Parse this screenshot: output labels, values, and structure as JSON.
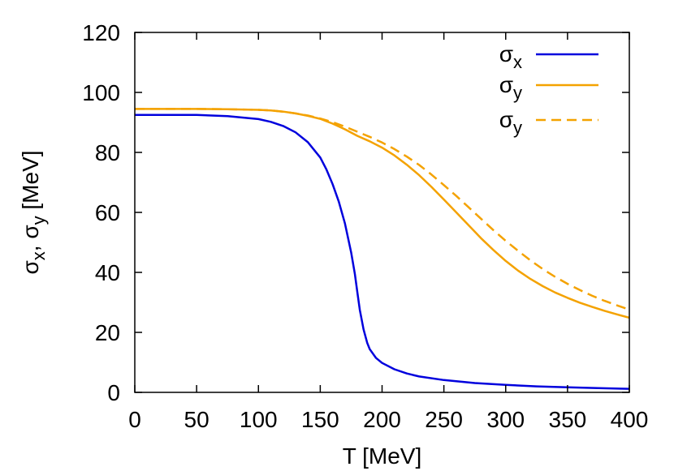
{
  "chart_data": {
    "type": "line",
    "xlabel": "T [MeV]",
    "ylabel": "σx, σy [MeV]",
    "xlim": [
      0,
      400
    ],
    "ylim": [
      0,
      120
    ],
    "xticks": [
      0,
      50,
      100,
      150,
      200,
      250,
      300,
      350,
      400
    ],
    "yticks": [
      0,
      20,
      40,
      60,
      80,
      100,
      120
    ],
    "grid": false,
    "legend_position": "top-right",
    "series": [
      {
        "name": "σx",
        "color": "#0000dd",
        "dash": "solid",
        "x": [
          0,
          25,
          50,
          75,
          100,
          110,
          120,
          130,
          140,
          150,
          155,
          160,
          165,
          170,
          175,
          178,
          180,
          182,
          185,
          188,
          190,
          195,
          200,
          210,
          220,
          230,
          250,
          275,
          300,
          325,
          350,
          375,
          400
        ],
        "y": [
          92.5,
          92.5,
          92.5,
          92.1,
          91.1,
          90.2,
          88.8,
          86.7,
          83.4,
          78.3,
          74.3,
          69.4,
          63.6,
          56.3,
          46.7,
          39.5,
          33.3,
          27.5,
          21.0,
          16.5,
          14.4,
          11.5,
          9.8,
          7.7,
          6.3,
          5.3,
          4.1,
          3.1,
          2.5,
          2.0,
          1.7,
          1.4,
          1.2
        ]
      },
      {
        "name": "σy",
        "color": "#f4a200",
        "dash": "solid",
        "x": [
          0,
          25,
          50,
          75,
          100,
          110,
          120,
          130,
          140,
          150,
          160,
          170,
          180,
          190,
          200,
          210,
          220,
          230,
          240,
          250,
          260,
          270,
          280,
          290,
          300,
          310,
          320,
          330,
          340,
          350,
          360,
          370,
          380,
          390,
          400
        ],
        "y": [
          94.5,
          94.5,
          94.5,
          94.4,
          94.2,
          94.0,
          93.6,
          93.0,
          92.2,
          91.2,
          89.6,
          87.7,
          85.5,
          83.7,
          81.6,
          79.0,
          75.9,
          72.4,
          68.5,
          64.3,
          60.0,
          55.7,
          51.4,
          47.5,
          43.8,
          40.6,
          37.8,
          35.4,
          33.3,
          31.5,
          29.9,
          28.5,
          27.2,
          26.0,
          24.9
        ]
      },
      {
        "name": "σy",
        "color": "#f4a200",
        "dash": "dashed",
        "x": [
          0,
          25,
          50,
          75,
          100,
          110,
          120,
          130,
          140,
          150,
          160,
          170,
          180,
          190,
          200,
          210,
          220,
          230,
          240,
          250,
          260,
          270,
          280,
          290,
          300,
          310,
          320,
          330,
          340,
          350,
          360,
          370,
          380,
          390,
          400
        ],
        "y": [
          94.5,
          94.5,
          94.5,
          94.4,
          94.2,
          94.0,
          93.6,
          93.0,
          92.3,
          91.3,
          90.1,
          88.6,
          86.9,
          85.2,
          83.3,
          81.1,
          78.6,
          75.8,
          72.6,
          69.1,
          65.5,
          61.7,
          57.9,
          54.1,
          50.5,
          47.2,
          44.0,
          41.1,
          38.5,
          36.2,
          34.1,
          32.2,
          30.5,
          29.0,
          27.6
        ]
      }
    ]
  }
}
